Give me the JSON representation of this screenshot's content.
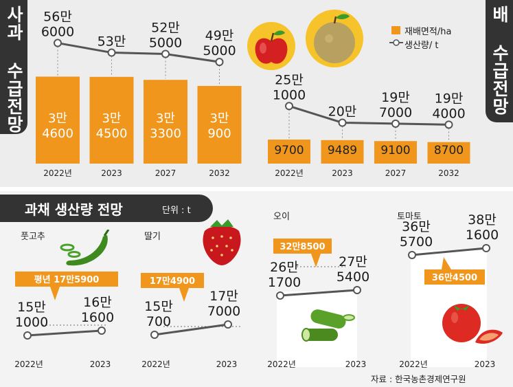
{
  "colors": {
    "bar": "#f0961c",
    "line": "#555555",
    "callout": "#f0961c",
    "tab": "#333333",
    "apple_circle": "#f6c32a",
    "pear_circle": "#f6c32a"
  },
  "apple": {
    "tab_title": "사과 수급전망",
    "legend_area": "재배면적/ha",
    "legend_production": "생산량/ t",
    "icon": "apple-illustration"
  },
  "pear": {
    "tab_title": "배 수급전망",
    "icon": "pear-illustration"
  },
  "veg": {
    "title": "과채 생산량 전망",
    "unit": "단위 : t",
    "source": "자료 : 한국농촌경제연구원"
  },
  "chart_data": [
    {
      "id": "apple",
      "type": "bar",
      "categories": [
        "2022년",
        "2023",
        "2027",
        "2032"
      ],
      "series": [
        {
          "name": "재배면적/ha",
          "values": [
            34600,
            34500,
            33300,
            30900
          ],
          "labels": [
            [
              "3만",
              "4600"
            ],
            [
              "3만",
              "4500"
            ],
            [
              "3만",
              "3300"
            ],
            [
              "3만",
              "900"
            ]
          ]
        },
        {
          "name": "생산량/ t",
          "values": [
            566000,
            530000,
            525000,
            495000
          ],
          "labels": [
            [
              "56만",
              "6000"
            ],
            [
              "53만",
              ""
            ],
            [
              "52만",
              "5000"
            ],
            [
              "49만",
              "5000"
            ]
          ]
        }
      ]
    },
    {
      "id": "pear",
      "type": "bar",
      "categories": [
        "2022년",
        "2023",
        "2027",
        "2032"
      ],
      "series": [
        {
          "name": "재배면적/ha",
          "values": [
            9700,
            9489,
            9100,
            8700
          ],
          "labels": [
            [
              "9700"
            ],
            [
              "9489"
            ],
            [
              "9100"
            ],
            [
              "8700"
            ]
          ]
        },
        {
          "name": "생산량/ t",
          "values": [
            251000,
            200000,
            197000,
            194000
          ],
          "labels": [
            [
              "25만",
              "1000"
            ],
            [
              "20만",
              ""
            ],
            [
              "19만",
              "7000"
            ],
            [
              "19만",
              "4000"
            ]
          ]
        }
      ]
    },
    {
      "id": "pepper",
      "type": "line",
      "title": "풋고추",
      "x": [
        "2022년",
        "2023"
      ],
      "values": [
        151000,
        161600
      ],
      "labels": [
        [
          "15만",
          "1000"
        ],
        [
          "16만",
          "1600"
        ]
      ],
      "average_label": "평년 17만5900",
      "average_value": 175900,
      "icon": "green-pepper-illustration"
    },
    {
      "id": "strawberry",
      "type": "line",
      "title": "딸기",
      "x": [
        "2022년",
        "2023"
      ],
      "values": [
        150700,
        177000
      ],
      "labels": [
        [
          "15만",
          "700"
        ],
        [
          "17만",
          "7000"
        ]
      ],
      "average_label": "17만4900",
      "average_value": 174900,
      "icon": "strawberry-illustration"
    },
    {
      "id": "cucumber",
      "type": "line",
      "title": "오이",
      "x": [
        "2022년",
        "2023"
      ],
      "values": [
        261700,
        275400
      ],
      "labels": [
        [
          "26만",
          "1700"
        ],
        [
          "27만",
          "5400"
        ]
      ],
      "average_label": "32만8500",
      "average_value": 328500,
      "icon": "cucumber-illustration"
    },
    {
      "id": "tomato",
      "type": "line",
      "title": "토마토",
      "x": [
        "2022년",
        "2023"
      ],
      "values": [
        365700,
        381600
      ],
      "labels": [
        [
          "36만",
          "5700"
        ],
        [
          "38만",
          "1600"
        ]
      ],
      "average_label": "36만4500",
      "average_value": 364500,
      "icon": "tomato-illustration"
    }
  ]
}
